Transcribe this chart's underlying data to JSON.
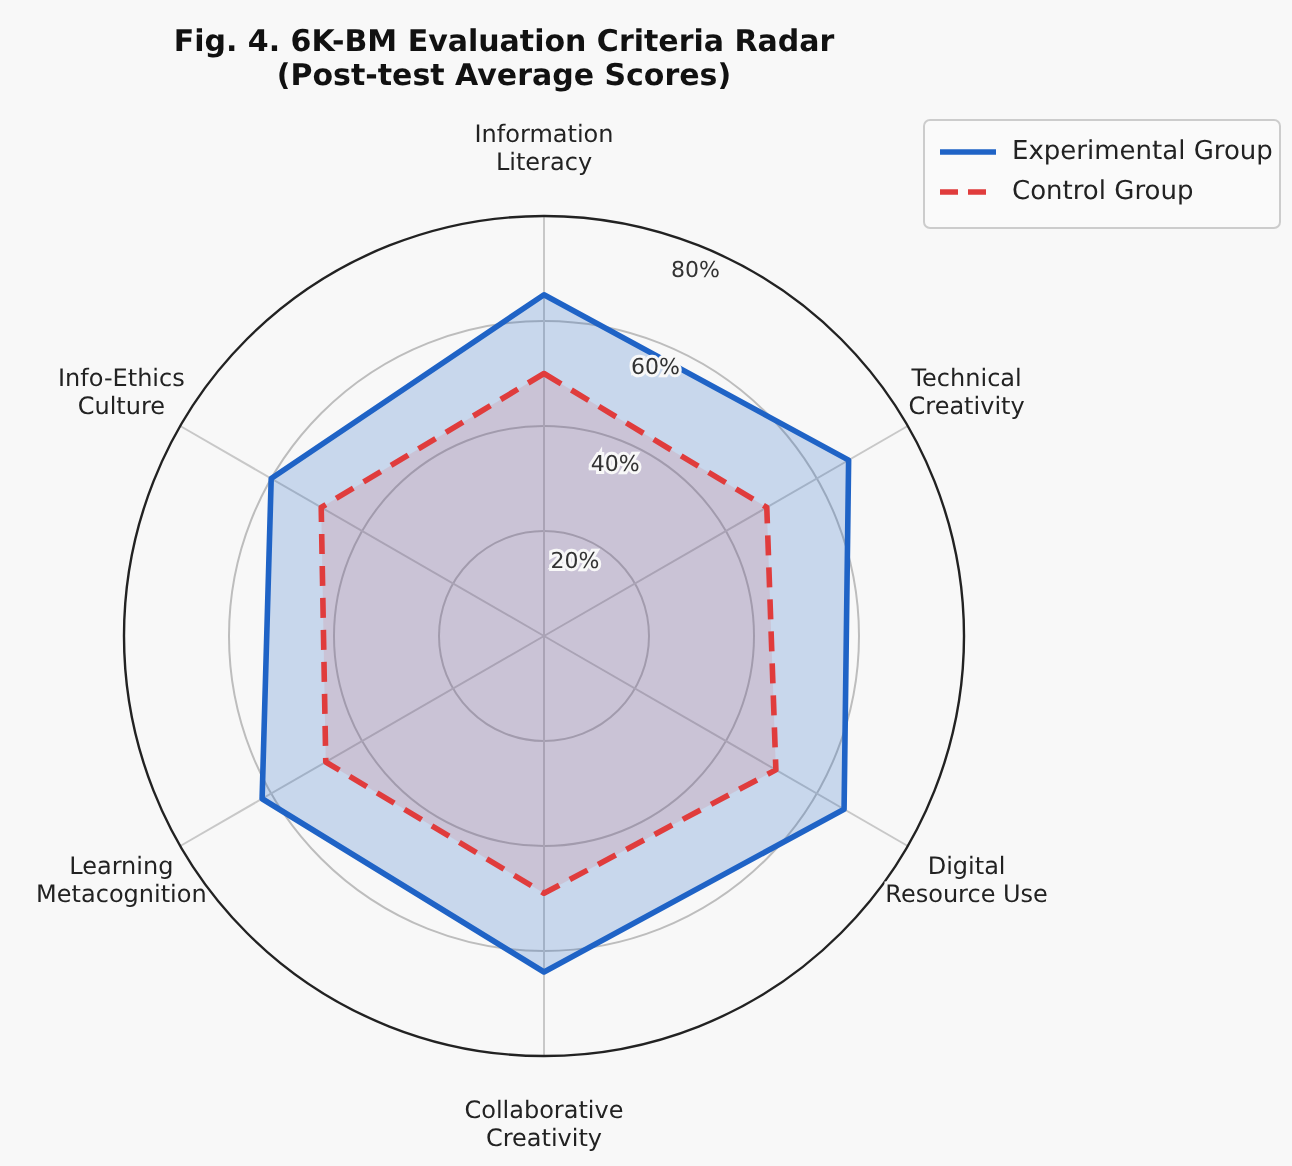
{
  "chart_data": {
    "type": "radar",
    "title": "Fig. 4. 6K-BM Evaluation Criteria Radar\n(Post-test Average Scores)",
    "categories": [
      "Information\nLiteracy",
      "Technical\nCreativity",
      "Digital\nResource Use",
      "Collaborative\nCreativity",
      "Learning\nMetacognition",
      "Info-Ethics\nCulture"
    ],
    "series": [
      {
        "name": "Experimental Group",
        "color": "#1f63c6",
        "line_style": "solid",
        "values": [
          65,
          67,
          66,
          64,
          62,
          60
        ]
      },
      {
        "name": "Control Group",
        "color": "#e03c3c",
        "line_style": "dashed",
        "values": [
          50,
          49,
          51,
          49,
          48,
          49
        ]
      }
    ],
    "ylim": [
      0,
      80
    ],
    "yticks": [
      {
        "value": 20,
        "label": "20%"
      },
      {
        "value": 40,
        "label": "40%"
      },
      {
        "value": 60,
        "label": "60%"
      },
      {
        "value": 80,
        "label": "80%"
      }
    ],
    "grid": true,
    "legend": "top right"
  }
}
